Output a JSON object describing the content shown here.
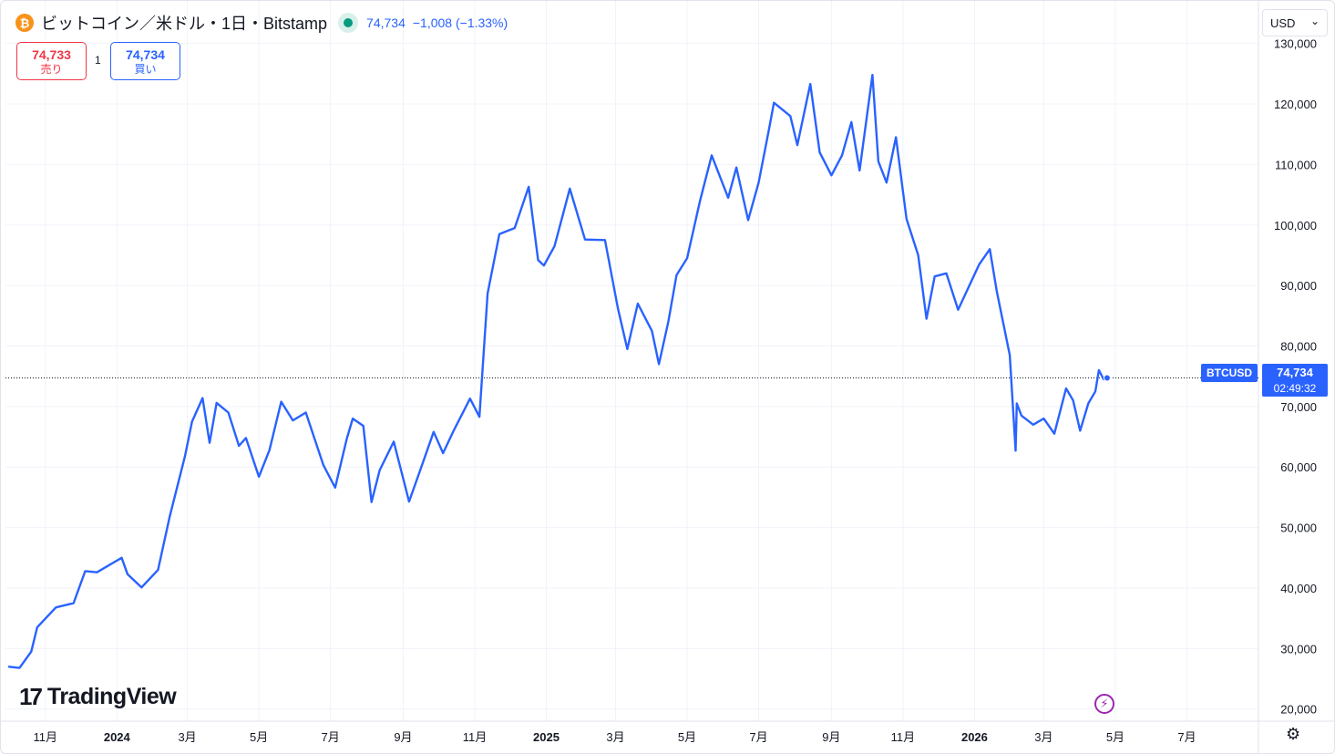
{
  "header": {
    "coin_icon": "bitcoin-icon",
    "coin_glyph": "₿",
    "symbol_title": "ビットコイン／米ドル・1日・Bitstamp",
    "market_status_icon": "market-open-dot-icon",
    "last_price": "74,734",
    "change": "−1,008 (−1.33%)",
    "change_color": "#2962ff"
  },
  "trade": {
    "sell_price": "74,733",
    "sell_label": "売り",
    "spread": "1",
    "buy_price": "74,734",
    "buy_label": "買い",
    "sell_color": "#f23645",
    "buy_color": "#2962ff"
  },
  "currency_select": {
    "value": "USD",
    "icon": "chevron-down-icon",
    "glyph": "⌄"
  },
  "price_tag": {
    "symbol": "BTCUSD",
    "price": "74,734",
    "countdown": "02:49:32",
    "color": "#2962ff"
  },
  "branding": {
    "logo_mark": "17",
    "logo_text": "TradingView"
  },
  "footer": {
    "flash_icon": "lightning-icon",
    "flash_glyph": "⚡",
    "settings_icon": "gear-icon",
    "settings_glyph": "⚙"
  },
  "chart_data": {
    "type": "line",
    "series": [
      {
        "name": "BTCUSD",
        "color": "#2962ff",
        "x": [
          "2023-10-01",
          "2023-10-10",
          "2023-10-20",
          "2023-10-25",
          "2023-11-10",
          "2023-11-25",
          "2023-12-05",
          "2023-12-15",
          "2024-01-05",
          "2024-01-10",
          "2024-01-22",
          "2024-02-05",
          "2024-02-15",
          "2024-02-28",
          "2024-03-05",
          "2024-03-14",
          "2024-03-20",
          "2024-03-26",
          "2024-04-05",
          "2024-04-14",
          "2024-04-20",
          "2024-05-01",
          "2024-05-10",
          "2024-05-20",
          "2024-05-30",
          "2024-06-10",
          "2024-06-25",
          "2024-07-05",
          "2024-07-15",
          "2024-07-20",
          "2024-07-29",
          "2024-08-05",
          "2024-08-12",
          "2024-08-24",
          "2024-09-06",
          "2024-09-15",
          "2024-09-27",
          "2024-10-05",
          "2024-10-14",
          "2024-10-28",
          "2024-11-05",
          "2024-11-12",
          "2024-11-22",
          "2024-12-05",
          "2024-12-17",
          "2024-12-25",
          "2024-12-30",
          "2025-01-08",
          "2025-01-21",
          "2025-02-03",
          "2025-02-20",
          "2025-03-03",
          "2025-03-11",
          "2025-03-20",
          "2025-04-01",
          "2025-04-07",
          "2025-04-15",
          "2025-04-22",
          "2025-05-01",
          "2025-05-12",
          "2025-05-22",
          "2025-06-05",
          "2025-06-12",
          "2025-06-22",
          "2025-07-01",
          "2025-07-10",
          "2025-07-14",
          "2025-07-28",
          "2025-08-03",
          "2025-08-14",
          "2025-08-22",
          "2025-09-01",
          "2025-09-10",
          "2025-09-18",
          "2025-09-25",
          "2025-10-06",
          "2025-10-11",
          "2025-10-18",
          "2025-10-26",
          "2025-11-04",
          "2025-11-14",
          "2025-11-21",
          "2025-11-28",
          "2025-12-08",
          "2025-12-18",
          "2026-01-05",
          "2026-01-14",
          "2026-01-20",
          "2026-01-31",
          "2026-02-05",
          "2026-02-06",
          "2026-02-10",
          "2026-02-20",
          "2026-03-01",
          "2026-03-10",
          "2026-03-20",
          "2026-03-26",
          "2026-04-01",
          "2026-04-08",
          "2026-04-14",
          "2026-04-17",
          "2026-04-21",
          "2026-04-24"
        ],
        "y": [
          27000,
          26800,
          29500,
          33500,
          36800,
          37500,
          42800,
          42600,
          45000,
          42300,
          40100,
          43000,
          51800,
          61800,
          67500,
          71400,
          64000,
          70600,
          69000,
          63500,
          64800,
          58400,
          62800,
          70800,
          67700,
          69000,
          60300,
          56600,
          64700,
          68000,
          66800,
          54200,
          59500,
          64200,
          54300,
          59200,
          65800,
          62300,
          66000,
          71300,
          68300,
          88700,
          98500,
          99500,
          106300,
          94200,
          93300,
          96500,
          106000,
          97600,
          97500,
          86200,
          79500,
          87000,
          82500,
          77000,
          84000,
          91700,
          94500,
          104000,
          111500,
          104500,
          109500,
          100800,
          107000,
          116000,
          120200,
          118000,
          113200,
          123300,
          112000,
          108200,
          111500,
          117000,
          109000,
          124800,
          110500,
          107000,
          114500,
          101000,
          95000,
          84500,
          91500,
          92000,
          86000,
          93500,
          96000,
          89000,
          78500,
          62700,
          70500,
          68500,
          67000,
          68000,
          65500,
          73000,
          71000,
          66000,
          70500,
          72500,
          76000,
          74500,
          74734
        ],
        "marker_last": true
      }
    ],
    "x_tick_labels": [
      "11月",
      "2024",
      "3月",
      "5月",
      "7月",
      "9月",
      "11月",
      "2025",
      "3月",
      "5月",
      "7月",
      "9月",
      "11月",
      "2026",
      "3月",
      "5月",
      "7月"
    ],
    "x_tick_dates": [
      "2023-11-01",
      "2024-01-01",
      "2024-03-01",
      "2024-05-01",
      "2024-07-01",
      "2024-09-01",
      "2024-11-01",
      "2025-01-01",
      "2025-03-01",
      "2025-05-01",
      "2025-07-01",
      "2025-09-01",
      "2025-11-01",
      "2026-01-01",
      "2026-03-01",
      "2026-05-01",
      "2026-07-01"
    ],
    "x_bold": [
      "2024",
      "2025",
      "2026"
    ],
    "y_tick_labels": [
      "130,000",
      "120,000",
      "110,000",
      "100,000",
      "90,000",
      "80,000",
      "70,000",
      "60,000",
      "50,000",
      "40,000",
      "30,000",
      "20,000"
    ],
    "y_ticks": [
      130000,
      120000,
      110000,
      100000,
      90000,
      80000,
      70000,
      60000,
      50000,
      40000,
      30000,
      20000
    ],
    "ylim": [
      18000,
      131000
    ],
    "xlim": [
      "2023-09-28",
      "2026-08-31"
    ],
    "current_price_line": 74734,
    "grid": true,
    "axis_position": "right"
  }
}
